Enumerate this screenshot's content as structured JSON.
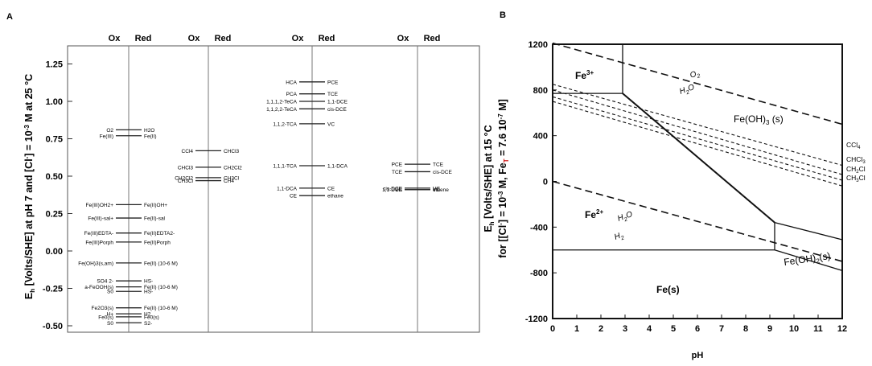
{
  "panel_a": {
    "letter": "A",
    "ylabel": "E_h [Volts/SHE] at pH 7 and [Cl⁻] = 10⁻³ M at 25 °C",
    "ylabel_prefix": "E",
    "ylabel_sub": "h",
    "ylabel_rest_1": " [Volts/SHE] at pH 7 and [Cl",
    "ylabel_sup_1": "-",
    "ylabel_rest_2": "] = 10",
    "ylabel_sup_2": "-3",
    "ylabel_rest_3": " M at 25 °C",
    "yticks": [
      "1.25",
      "1.00",
      "0.75",
      "0.50",
      "0.25",
      "0.00",
      "-0.25",
      "-0.50"
    ],
    "ytick_values": [
      1.25,
      1.0,
      0.75,
      0.5,
      0.25,
      0.0,
      -0.25,
      -0.5
    ],
    "col_headers": [
      "Ox",
      "Red",
      "Ox",
      "Red",
      "Ox",
      "Red",
      "Ox",
      "Red"
    ]
  },
  "panel_b": {
    "letter": "B",
    "ylabel_line1": "E_h [Volts/SHE] at 15 °C",
    "ylabel_line2": "for [[Cl⁻] = 10⁻³ M, Fe_T = 7.6 10⁻⁷ M]",
    "xlabel": "pH",
    "xticks": [
      "0",
      "1",
      "2",
      "3",
      "4",
      "5",
      "6",
      "7",
      "8",
      "9",
      "10",
      "11",
      "12"
    ],
    "yticks": [
      "1200",
      "800",
      "400",
      "0",
      "-400",
      "-800",
      "-1200"
    ],
    "ytick_values": [
      1200,
      800,
      400,
      0,
      -400,
      -800,
      -1200
    ],
    "regions": {
      "fe3": "Fe3+",
      "fe2": "Fe2+",
      "feoh3": "Fe(OH)3 (s)",
      "feoh2": "Fe(OH)2(s)",
      "fes": "Fe(s)"
    },
    "line_labels": {
      "o2": "O2",
      "h2o_top": "H2O",
      "h2o_bot": "H2O",
      "h2": "H2",
      "ccl4": "CCl4",
      "chcl3": "CHCl3",
      "ch2cl2": "CH2Cl2",
      "ch3cl": "CH3Cl"
    }
  },
  "chart_data": [
    {
      "type": "other",
      "description_free": true,
      "xlabel": "",
      "ylabel": "E_h [Volts/SHE] at pH 7 and [Cl-] = 10-3 M at 25 °C",
      "ylim": [
        -0.62,
        1.35
      ],
      "columns": [
        {
          "headers": [
            "Ox",
            "Red"
          ],
          "couples": [
            {
              "ox": "O2",
              "red": "H2O",
              "e": 0.81
            },
            {
              "ox": "Fe(III)",
              "red": "Fe(II)",
              "e": 0.77
            },
            {
              "ox": "Fe(III)OH2+",
              "red": "Fe(II)OH+",
              "e": 0.31
            },
            {
              "ox": "Fe(III)-sal+",
              "red": "Fe(II)-sal",
              "e": 0.22
            },
            {
              "ox": "Fe(III)EDTA-",
              "red": "Fe(II)EDTA2-",
              "e": 0.12
            },
            {
              "ox": "Fe(III)Porph",
              "red": "Fe(II)Porph",
              "e": 0.06
            },
            {
              "ox": "Fe(OH)3(s,am)",
              "red": "Fe(II) (10-6 M)",
              "e": -0.08
            },
            {
              "ox": "SO4 2-",
              "red": "HS-",
              "e": -0.2
            },
            {
              "ox": "a-FeOOH(s)",
              "red": "Fe(II) (10-6 M)",
              "e": -0.24
            },
            {
              "ox": "S0",
              "red": "HS-",
              "e": -0.27
            },
            {
              "ox": "Fe2O3(s)",
              "red": "Fe(II) (10-6 M)",
              "e": -0.38
            },
            {
              "ox": "H+",
              "red": "H2",
              "e": -0.42
            },
            {
              "ox": "Fe0(s)",
              "red": "Fe0(s)",
              "e": -0.44
            },
            {
              "ox": "S0",
              "red": "S2-",
              "e": -0.48
            }
          ]
        },
        {
          "headers": [
            "Ox",
            "Red"
          ],
          "couples": [
            {
              "ox": "CCl4",
              "red": "CHCl3",
              "e": 0.67
            },
            {
              "ox": "CHCl3",
              "red": "CH2Cl2",
              "e": 0.56
            },
            {
              "ox": "CH2Cl2",
              "red": "CH3Cl",
              "e": 0.49
            },
            {
              "ox": "CH3Cl",
              "red": "CH4",
              "e": 0.47
            }
          ]
        },
        {
          "headers": [
            "Ox",
            "Red"
          ],
          "couples": [
            {
              "ox": "HCA",
              "red": "PCE",
              "e": 1.13
            },
            {
              "ox": "PCA",
              "red": "TCE",
              "e": 1.05
            },
            {
              "ox": "1,1,1,2-TeCA",
              "red": "1,1-DCE",
              "e": 1.0
            },
            {
              "ox": "1,1,2,2-TeCA",
              "red": "cis-DCE",
              "e": 0.95
            },
            {
              "ox": "1,1,2-TCA",
              "red": "VC",
              "e": 0.85
            },
            {
              "ox": "1,1,1-TCA",
              "red": "1,1-DCA",
              "e": 0.57
            },
            {
              "ox": "1,1-DCA",
              "red": "CE",
              "e": 0.42
            },
            {
              "ox": "CE",
              "red": "ethane",
              "e": 0.37
            }
          ]
        },
        {
          "headers": [
            "Ox",
            "Red"
          ],
          "couples": [
            {
              "ox": "PCE",
              "red": "TCE",
              "e": 0.58
            },
            {
              "ox": "TCE",
              "red": "cis-DCE",
              "e": 0.53
            },
            {
              "ox": "cis-DCE",
              "red": "VC",
              "e": 0.42
            },
            {
              "ox": "1,1-DCE",
              "red": "VC",
              "e": 0.41
            },
            {
              "ox": "VC",
              "red": "ethene",
              "e": 0.41
            }
          ]
        }
      ]
    },
    {
      "type": "line",
      "xlabel": "pH",
      "ylabel": "E_h [Volts/SHE] at 15 °C for [[Cl-] = 10-3 M, Fe_T = 7.6 10-7 M]",
      "xlim": [
        0,
        12
      ],
      "ylim": [
        -1200,
        1200
      ],
      "series": [
        {
          "name": "O2/H2O",
          "style": "dashed",
          "x": [
            0,
            12
          ],
          "y": [
            1210,
            500
          ]
        },
        {
          "name": "H2O/H2",
          "style": "dashed",
          "x": [
            0,
            12
          ],
          "y": [
            0,
            -700
          ]
        },
        {
          "name": "CCl4",
          "style": "dashed",
          "x": [
            0,
            12
          ],
          "y": [
            850,
            140
          ]
        },
        {
          "name": "CHCl3",
          "style": "dashed",
          "x": [
            0,
            12
          ],
          "y": [
            800,
            60
          ]
        },
        {
          "name": "CH2Cl2",
          "style": "dashed",
          "x": [
            0,
            12
          ],
          "y": [
            740,
            10
          ]
        },
        {
          "name": "CH3Cl",
          "style": "dashed",
          "x": [
            0,
            12
          ],
          "y": [
            700,
            -40
          ]
        },
        {
          "name": "Fe3+/Fe2+",
          "style": "solid",
          "x": [
            0,
            2.9
          ],
          "y": [
            770,
            770
          ]
        },
        {
          "name": "Fe3+/Fe(OH)3",
          "style": "solid",
          "x": [
            2.9,
            2.9
          ],
          "y": [
            770,
            1200
          ]
        },
        {
          "name": "Fe2+/Fe(OH)3",
          "style": "solid",
          "x": [
            2.9,
            9.2
          ],
          "y": [
            770,
            -360
          ]
        },
        {
          "name": "Fe(OH)3/Fe(OH)2",
          "style": "solid",
          "x": [
            9.2,
            12
          ],
          "y": [
            -360,
            -510
          ]
        },
        {
          "name": "Fe2+/Fe(OH)2",
          "style": "solid",
          "x": [
            9.2,
            9.2
          ],
          "y": [
            -360,
            -600
          ]
        },
        {
          "name": "Fe2+/Fe(s)",
          "style": "solid",
          "x": [
            0,
            9.2
          ],
          "y": [
            -600,
            -600
          ]
        },
        {
          "name": "Fe(OH)2/Fe(s)",
          "style": "solid",
          "x": [
            9.2,
            12
          ],
          "y": [
            -600,
            -780
          ]
        }
      ]
    }
  ]
}
